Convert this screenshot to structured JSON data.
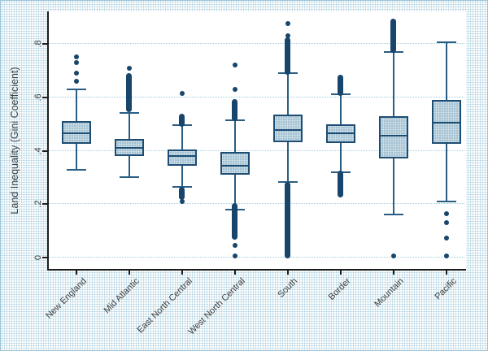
{
  "window": {
    "background_dot_color": "#aed0e0",
    "border_color": "#9cc3d6"
  },
  "chart_data": {
    "type": "box",
    "title": "",
    "ylabel": "Land Inequality (Gini Coefficient)",
    "xlabel": "",
    "ylim": [
      -0.04,
      0.92
    ],
    "yticks": [
      0,
      0.2,
      0.4,
      0.6,
      0.8
    ],
    "ytick_labels": [
      "0",
      ".2",
      ".4",
      ".6",
      ".8"
    ],
    "grid": true,
    "legend": "none",
    "categories": [
      "New England",
      "Mid Atlantic",
      "East North Central",
      "West North Central",
      "South",
      "Border",
      "Mountain",
      "Pacific"
    ],
    "series": [
      {
        "name": "New England",
        "whislo": 0.33,
        "q1": 0.425,
        "med": 0.465,
        "q3": 0.51,
        "whishi": 0.63,
        "outlier_dots": [
          0.66,
          0.69,
          0.73,
          0.75
        ],
        "outlier_runs": []
      },
      {
        "name": "Mid Atlantic",
        "whislo": 0.3,
        "q1": 0.38,
        "med": 0.41,
        "q3": 0.445,
        "whishi": 0.54,
        "outlier_dots": [
          0.71
        ],
        "outlier_runs": [
          [
            0.555,
            0.68
          ]
        ]
      },
      {
        "name": "East North Central",
        "whislo": 0.265,
        "q1": 0.345,
        "med": 0.38,
        "q3": 0.405,
        "whishi": 0.495,
        "outlier_dots": [
          0.615,
          0.21
        ],
        "outlier_runs": [
          [
            0.5,
            0.53
          ],
          [
            0.225,
            0.255
          ]
        ]
      },
      {
        "name": "West North Central",
        "whislo": 0.18,
        "q1": 0.31,
        "med": 0.345,
        "q3": 0.395,
        "whishi": 0.515,
        "outlier_dots": [
          0.72,
          0.63,
          0.045,
          0.005
        ],
        "outlier_runs": [
          [
            0.52,
            0.585
          ],
          [
            0.075,
            0.195
          ]
        ]
      },
      {
        "name": "South",
        "whislo": 0.283,
        "q1": 0.432,
        "med": 0.478,
        "q3": 0.535,
        "whishi": 0.69,
        "outlier_dots": [
          0.875,
          0.83
        ],
        "outlier_runs": [
          [
            0.695,
            0.815
          ],
          [
            0.005,
            0.275
          ]
        ]
      },
      {
        "name": "Border",
        "whislo": 0.32,
        "q1": 0.43,
        "med": 0.465,
        "q3": 0.5,
        "whishi": 0.61,
        "outlier_dots": [],
        "outlier_runs": [
          [
            0.615,
            0.675
          ],
          [
            0.235,
            0.315
          ]
        ]
      },
      {
        "name": "Mountain",
        "whislo": 0.16,
        "q1": 0.37,
        "med": 0.455,
        "q3": 0.53,
        "whishi": 0.77,
        "outlier_dots": [
          0.005
        ],
        "outlier_runs": [
          [
            0.775,
            0.885
          ]
        ]
      },
      {
        "name": "Pacific",
        "whislo": 0.21,
        "q1": 0.425,
        "med": 0.505,
        "q3": 0.59,
        "whishi": 0.805,
        "outlier_dots": [
          0.165,
          0.13,
          0.073,
          0.005
        ],
        "outlier_runs": []
      }
    ],
    "colors": {
      "box_line": "#1e4d74",
      "box_fill": "#a4c2d2",
      "whisker": "#2a5d83",
      "outlier": "#17456b",
      "grid": "#9fd0e0",
      "axis": "#1c1c1c",
      "text": "#404040"
    }
  }
}
